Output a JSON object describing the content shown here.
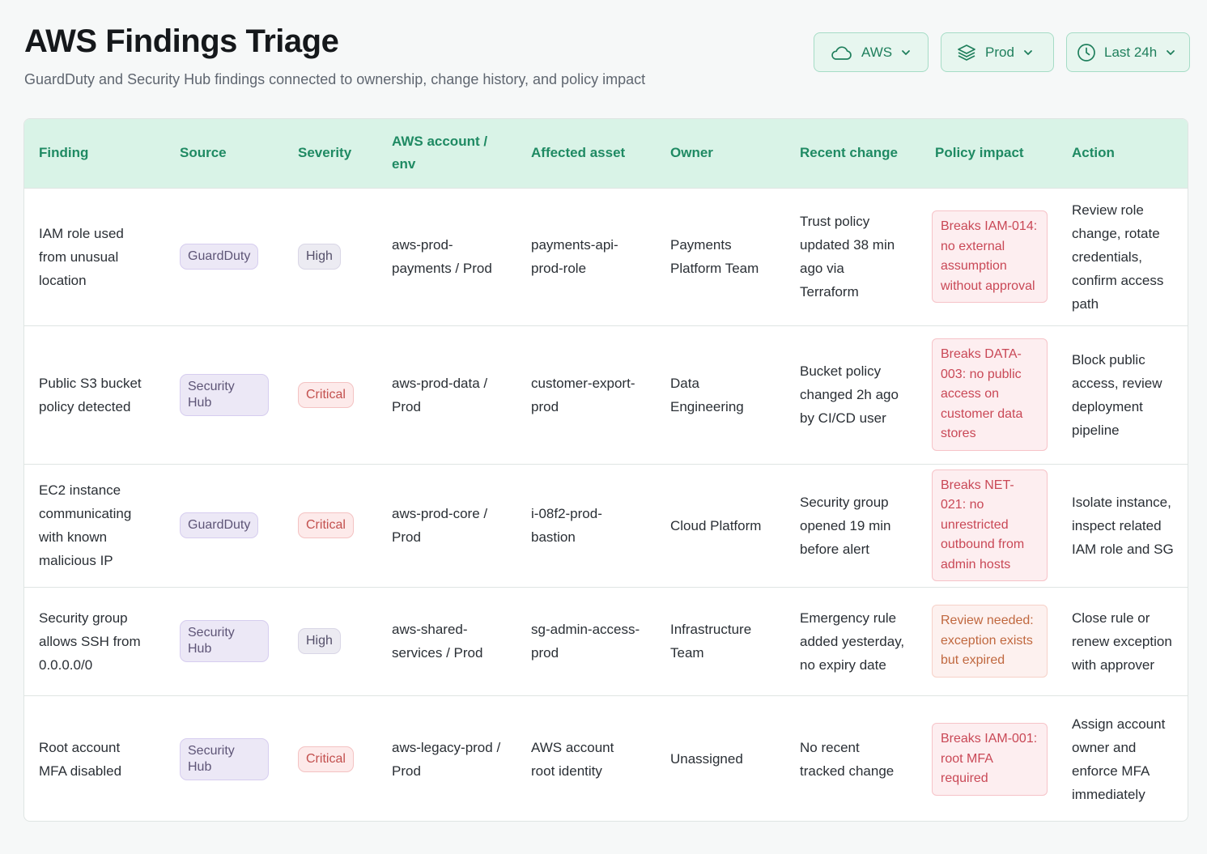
{
  "header": {
    "title": "AWS Findings Triage",
    "subtitle": "GuardDuty and Security Hub findings connected to ownership, change history, and policy impact"
  },
  "filters": {
    "cloud": "AWS",
    "environment": "Prod",
    "time_range": "Last 24h"
  },
  "table": {
    "columns": [
      "Finding",
      "Source",
      "Severity",
      "AWS account / env",
      "Affected asset",
      "Owner",
      "Recent change",
      "Policy impact",
      "Action"
    ],
    "rows": [
      {
        "finding": "IAM role used from unusual location",
        "source": "GuardDuty",
        "severity": "High",
        "account": "aws-prod-payments / Prod",
        "asset": "payments-api-prod-role",
        "owner": "Payments Platform Team",
        "change": "Trust policy updated 38 min ago via Terraform",
        "policy": "Breaks IAM-014: no external assumption without approval",
        "policy_kind": "breaks",
        "action": "Review role change, rotate credentials, confirm access path"
      },
      {
        "finding": "Public S3 bucket policy detected",
        "source": "Security Hub",
        "severity": "Critical",
        "account": "aws-prod-data / Prod",
        "asset": "customer-export-prod",
        "owner": "Data Engineering",
        "change": "Bucket policy changed 2h ago by CI/CD user",
        "policy": "Breaks DATA-003: no public access on customer data stores",
        "policy_kind": "breaks",
        "action": "Block public access, review deployment pipeline"
      },
      {
        "finding": "EC2 instance communicating with known malicious IP",
        "source": "GuardDuty",
        "severity": "Critical",
        "account": "aws-prod-core / Prod",
        "asset": "i-08f2-prod-bastion",
        "owner": "Cloud Platform",
        "change": "Security group opened 19 min before alert",
        "policy": "Breaks NET-021: no unrestricted outbound from admin hosts",
        "policy_kind": "breaks",
        "action": "Isolate instance, inspect related IAM role and SG"
      },
      {
        "finding": "Security group allows SSH from 0.0.0.0/0",
        "source": "Security Hub",
        "severity": "High",
        "account": "aws-shared-services / Prod",
        "asset": "sg-admin-access-prod",
        "owner": "Infrastructure Team",
        "change": "Emergency rule added yesterday, no expiry date",
        "policy": "Review needed: exception exists but expired",
        "policy_kind": "review",
        "action": "Close rule or renew exception with approver"
      },
      {
        "finding": "Root account MFA disabled",
        "source": "Security Hub",
        "severity": "Critical",
        "account": "aws-legacy-prod / Prod",
        "asset": "AWS account root identity",
        "owner": "Unassigned",
        "change": "No recent tracked change",
        "policy": "Breaks IAM-001: root MFA required",
        "policy_kind": "breaks",
        "action": "Assign account owner and enforce MFA immediately"
      }
    ]
  },
  "colors": {
    "accent": "#1f8a63",
    "header_bg": "#d9f3e7",
    "critical": "#c2504e",
    "review": "#c0683f"
  },
  "icons": {
    "cloud": "cloud-icon",
    "environment": "layers-icon",
    "time_range": "clock-icon",
    "dropdown": "chevron-down-icon"
  }
}
